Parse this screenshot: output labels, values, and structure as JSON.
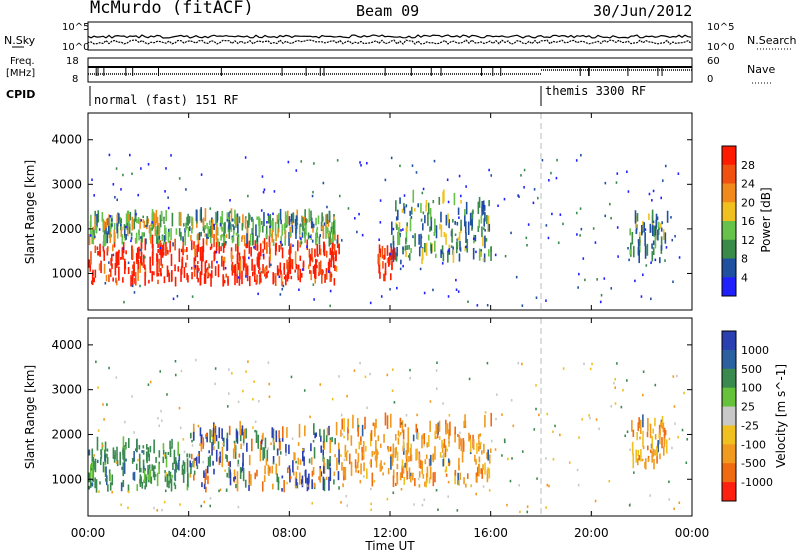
{
  "header": {
    "station": "McMurdo (fitACF)",
    "beam": "Beam 09",
    "date": "30/Jun/2012"
  },
  "top_panels": {
    "nsky_label": "N.Sky",
    "nsearch_label": "N.Search",
    "noise_ticks_left": [
      "10^5",
      "10^0"
    ],
    "noise_ticks_right": [
      "10^5",
      "10^0"
    ],
    "freq_label_line1": "Freq.",
    "freq_label_line2": "[MHz]",
    "freq_ticks": [
      "18",
      "8"
    ],
    "nave_label": "Nave",
    "nave_ticks": [
      "60",
      "0"
    ],
    "cpid_label": "CPID",
    "cpid_segments": [
      "normal (fast) 151 RF",
      "themis 3300 RF"
    ]
  },
  "x_axis": {
    "label": "Time UT",
    "ticks": [
      "00:00",
      "04:00",
      "08:00",
      "12:00",
      "16:00",
      "20:00",
      "00:00"
    ]
  },
  "colors": {
    "power": [
      "#2020ff",
      "#2050a0",
      "#3a8a4a",
      "#66c24a",
      "#f0c020",
      "#f08a1a",
      "#f05010",
      "#ff1a00"
    ],
    "velocity": [
      "#2a3fb0",
      "#2a5fa0",
      "#3a8a50",
      "#66c23a",
      "#c8c8c8",
      "#f0c020",
      "#f09a20",
      "#f06a10",
      "#ff2010"
    ]
  },
  "chart_data": [
    {
      "type": "heatmap",
      "title": "Power",
      "xlabel": "Time UT",
      "ylabel": "Slant Range [km]",
      "xlim": [
        "00:00",
        "24:00"
      ],
      "ylim": [
        180,
        4600
      ],
      "yticks": [
        "1000",
        "2000",
        "3000",
        "4000"
      ],
      "colorbar": {
        "label": "Power [dB]",
        "ticks": [
          "4",
          "8",
          "12",
          "16",
          "20",
          "24",
          "28"
        ]
      },
      "regions": [
        {
          "t0": 0.0,
          "t1": 10.0,
          "r0": 700,
          "r1": 1600,
          "level": "high"
        },
        {
          "t0": 0.0,
          "t1": 10.0,
          "r0": 1600,
          "r1": 2200,
          "level": "medium"
        },
        {
          "t0": 11.5,
          "t1": 12.2,
          "r0": 800,
          "r1": 1400,
          "level": "high"
        },
        {
          "t0": 12.0,
          "t1": 16.0,
          "r0": 1200,
          "r1": 2600,
          "level": "low"
        },
        {
          "t0": 21.5,
          "t1": 23.0,
          "r0": 1200,
          "r1": 2200,
          "level": "low"
        }
      ]
    },
    {
      "type": "heatmap",
      "title": "Velocity",
      "xlabel": "Time UT",
      "ylabel": "Slant Range [km]",
      "xlim": [
        "00:00",
        "24:00"
      ],
      "ylim": [
        180,
        4600
      ],
      "yticks": [
        "1000",
        "2000",
        "3000",
        "4000"
      ],
      "colorbar": {
        "label": "Velocity [m s^-1]",
        "ticks": [
          "1000",
          "500",
          "100",
          "25",
          "-25",
          "-100",
          "-500",
          "-1000"
        ]
      },
      "regions": [
        {
          "t0": 0.0,
          "t1": 4.0,
          "r0": 700,
          "r1": 1700,
          "level": "slightly positive"
        },
        {
          "t0": 4.0,
          "t1": 10.0,
          "r0": 700,
          "r1": 2000,
          "level": "mixed positive and negative"
        },
        {
          "t0": 10.0,
          "t1": 16.0,
          "r0": 800,
          "r1": 2200,
          "level": "negative"
        },
        {
          "t0": 21.5,
          "t1": 23.0,
          "r0": 1200,
          "r1": 2200,
          "level": "negative"
        }
      ]
    }
  ]
}
